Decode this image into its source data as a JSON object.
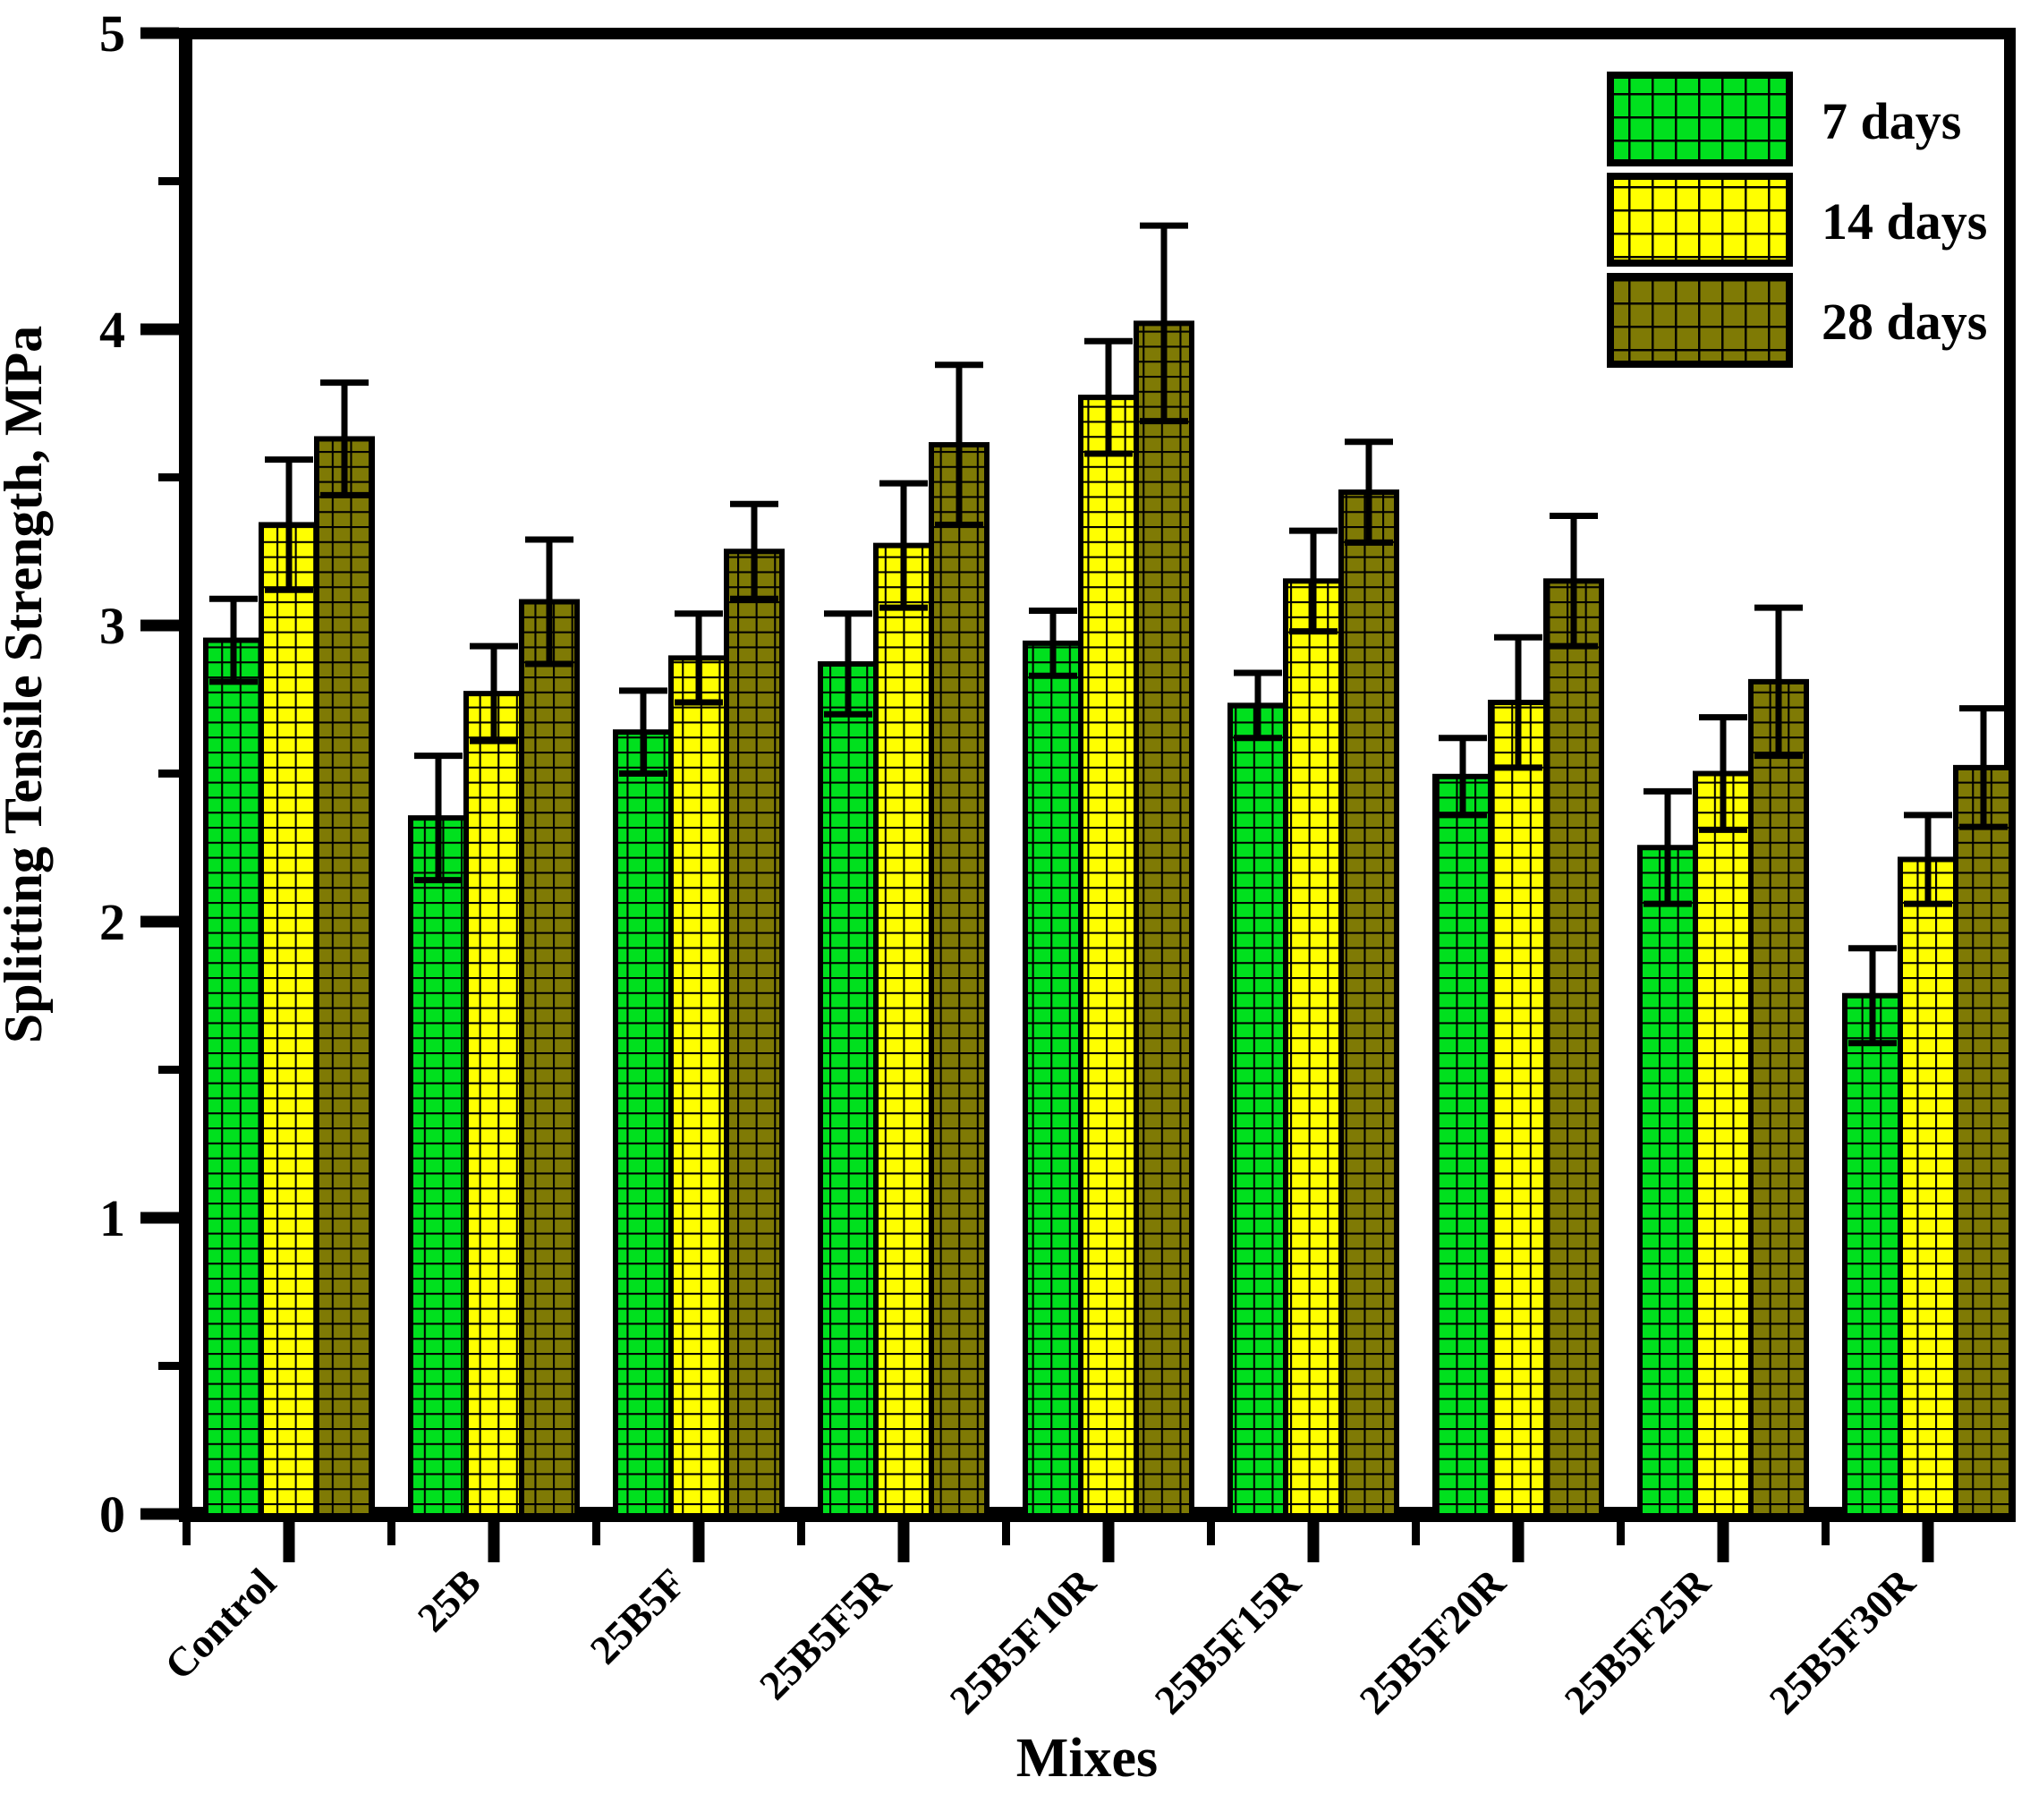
{
  "figure": {
    "background": "#ffffff",
    "frame_color": "#000000"
  },
  "chart_data": {
    "type": "bar",
    "title": "",
    "xlabel": "Mixes",
    "ylabel": "Splitting Tensile Strength, MPa",
    "ylim": [
      0,
      5
    ],
    "yticks": [
      0,
      1,
      2,
      3,
      4,
      5
    ],
    "y_minor_step": 0.5,
    "grid": false,
    "legend_position": "top-right-inside",
    "bar_hatch": "grid",
    "error_bars": true,
    "categories": [
      "Control",
      "25B",
      "25B5F",
      "25B5F5R",
      "25B5F10R",
      "25B5F15R",
      "25B5F20R",
      "25B5F25R",
      "25B5F30R"
    ],
    "series": [
      {
        "name": "7 days",
        "color": "#00E01E",
        "values": [
          2.95,
          2.35,
          2.64,
          2.87,
          2.94,
          2.73,
          2.49,
          2.25,
          1.75
        ],
        "errors": [
          0.14,
          0.21,
          0.14,
          0.17,
          0.11,
          0.11,
          0.13,
          0.19,
          0.16
        ]
      },
      {
        "name": "14 days",
        "color": "#FFFF00",
        "values": [
          3.34,
          2.77,
          2.89,
          3.27,
          3.77,
          3.15,
          2.74,
          2.5,
          2.21
        ],
        "errors": [
          0.22,
          0.16,
          0.15,
          0.21,
          0.19,
          0.17,
          0.22,
          0.19,
          0.15
        ]
      },
      {
        "name": "28 days",
        "color": "#7F7A05",
        "values": [
          3.63,
          3.08,
          3.25,
          3.61,
          4.02,
          3.45,
          3.15,
          2.81,
          2.52
        ],
        "errors": [
          0.19,
          0.21,
          0.16,
          0.27,
          0.33,
          0.17,
          0.22,
          0.25,
          0.2
        ]
      }
    ]
  }
}
